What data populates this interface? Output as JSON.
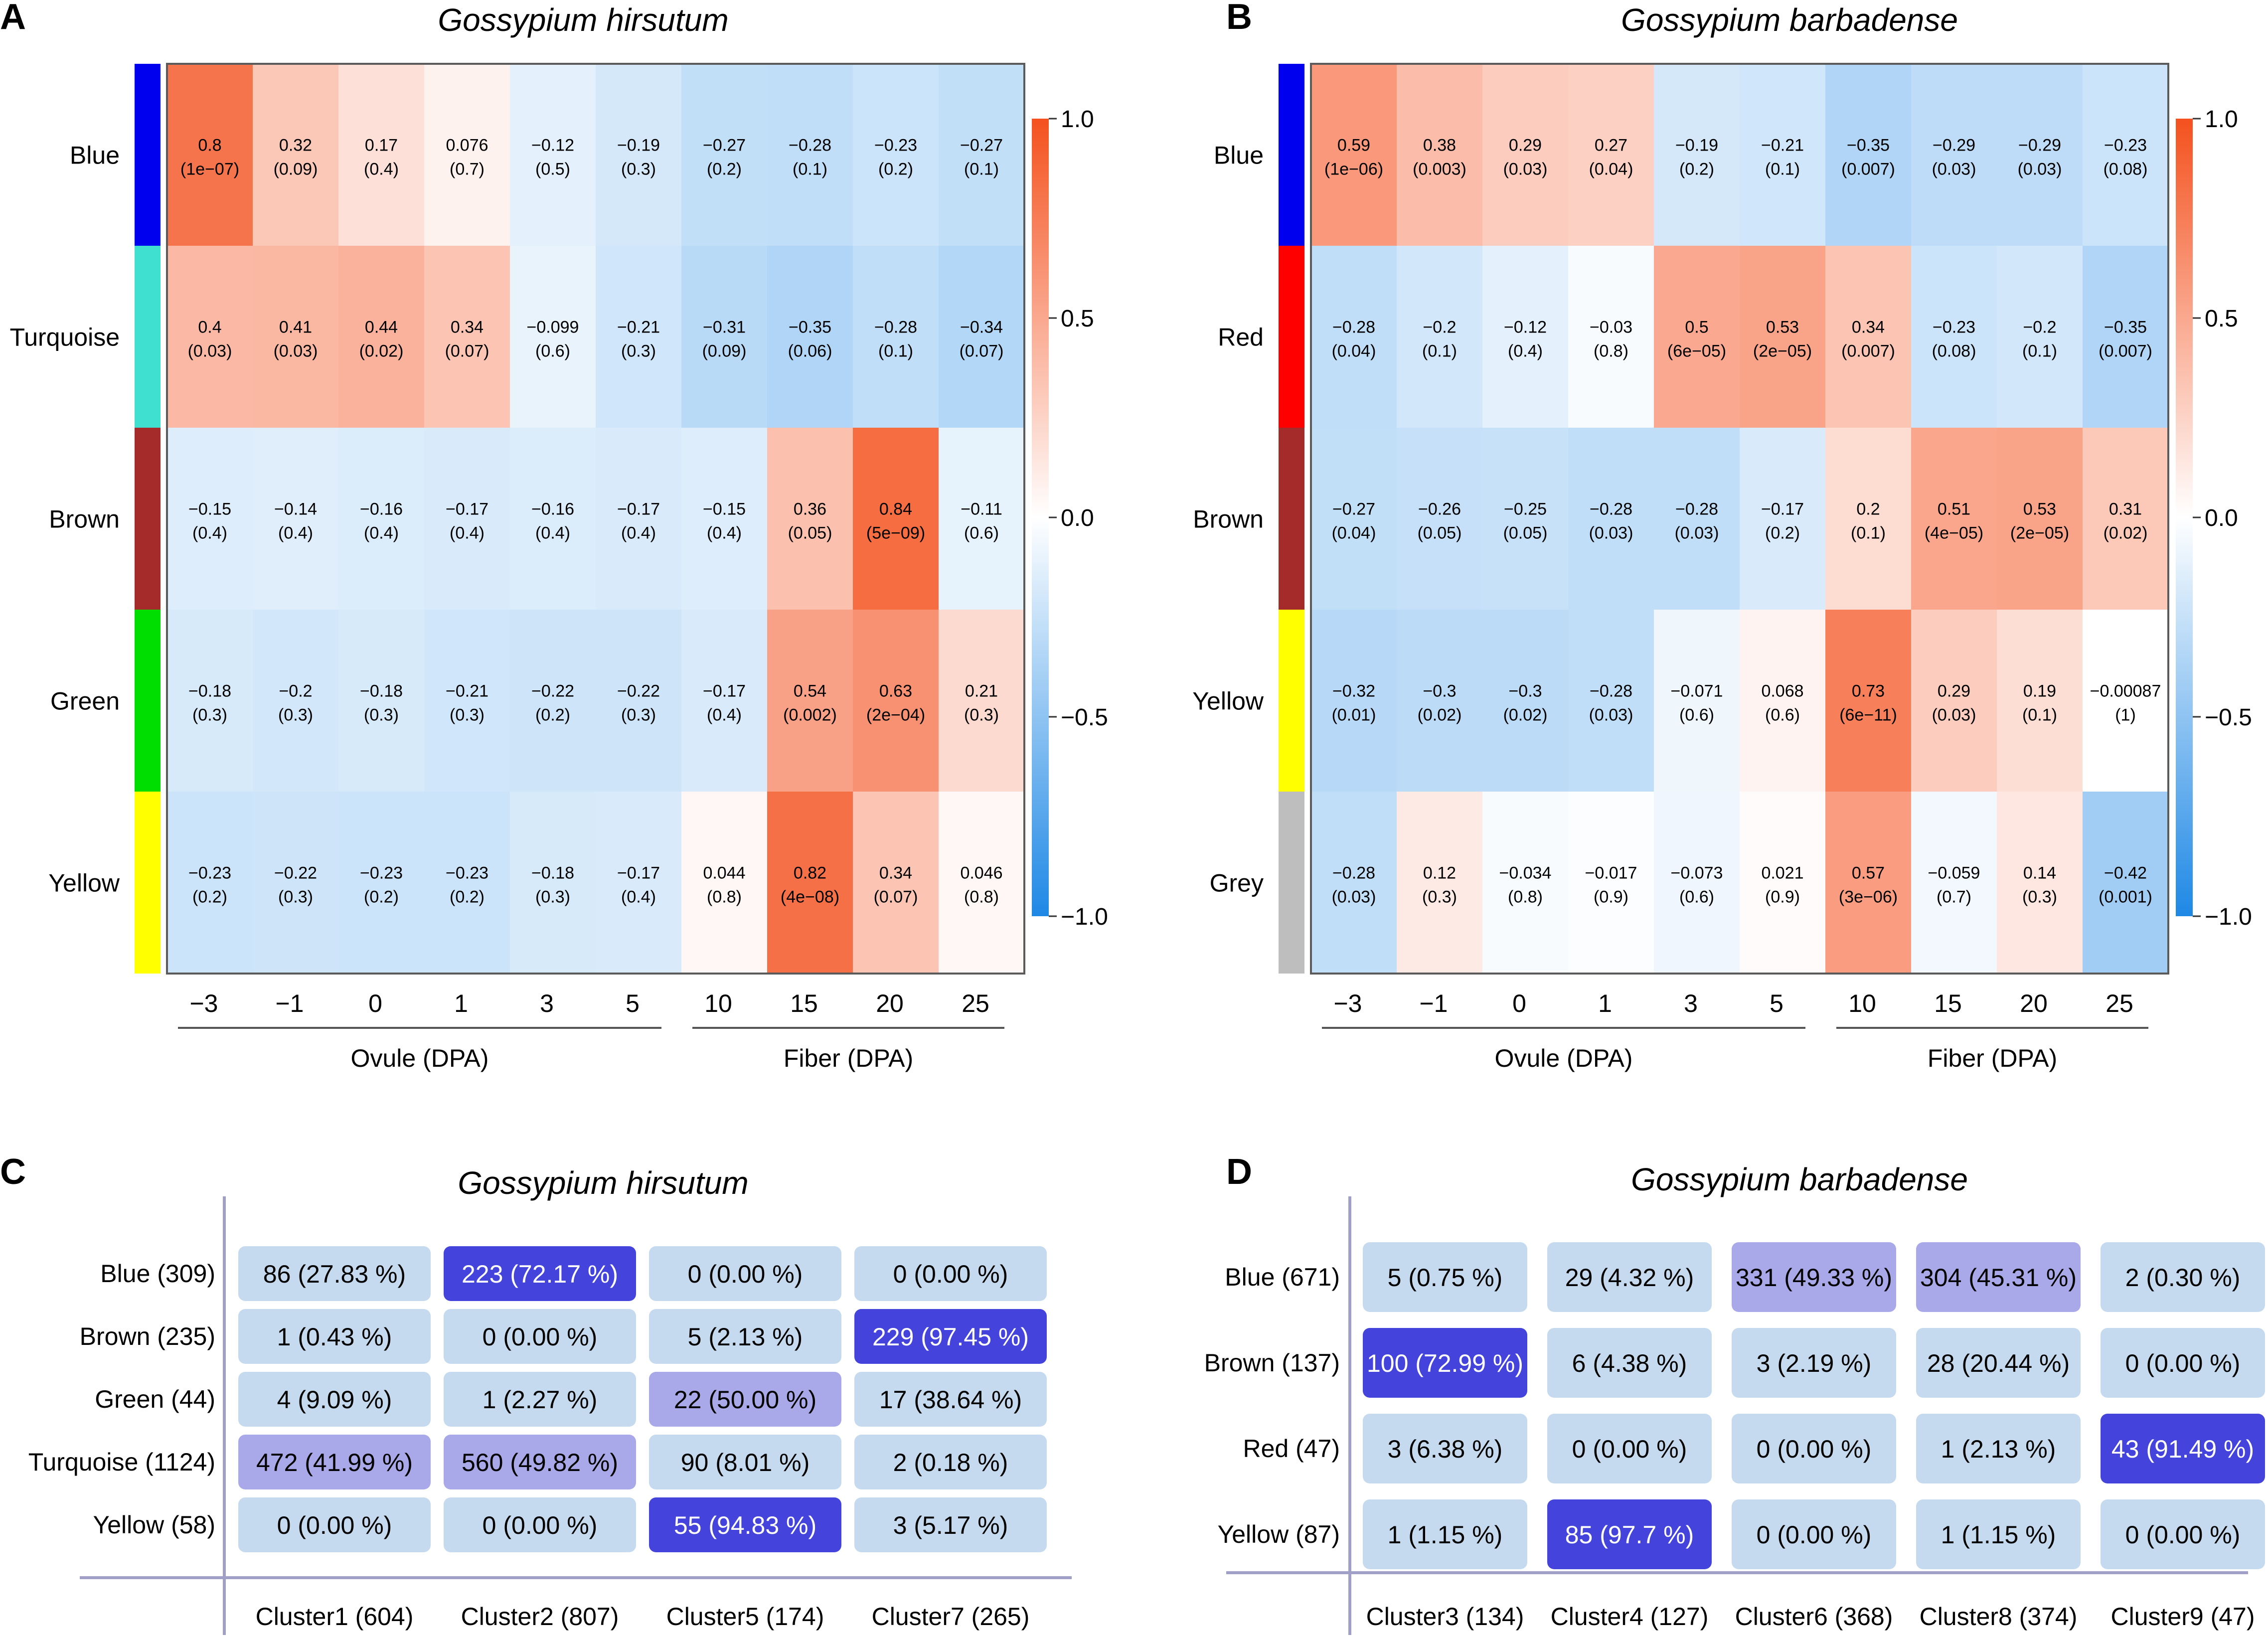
{
  "panel_labels": [
    "A",
    "B",
    "C",
    "D"
  ],
  "colors": {
    "neg": "#1e88e5",
    "mid": "#ffffff",
    "pos": "#f4511e",
    "frame": "#5b5b5b",
    "box_light": "#c6daef",
    "box_mid": "#a9a8e8",
    "box_strong": "#4444dd"
  },
  "chart_data": [
    {
      "type": "heatmap",
      "panel": "A",
      "title": "Gossypium hirsutum",
      "x": [
        "−3",
        "−1",
        "0",
        "1",
        "3",
        "5",
        "10",
        "15",
        "20",
        "25"
      ],
      "groups": [
        {
          "label": "Ovule  (DPA)",
          "from": 0,
          "to": 5
        },
        {
          "label": "Fiber  (DPA)",
          "from": 6,
          "to": 9
        }
      ],
      "rows": [
        {
          "name": "Blue",
          "color": "#0000ee"
        },
        {
          "name": "Turquoise",
          "color": "#40e0d0"
        },
        {
          "name": "Brown",
          "color": "#a52a2a"
        },
        {
          "name": "Green",
          "color": "#00dd00"
        },
        {
          "name": "Yellow",
          "color": "#ffff00"
        }
      ],
      "values": [
        [
          0.8,
          0.32,
          0.17,
          0.076,
          -0.12,
          -0.19,
          -0.27,
          -0.28,
          -0.23,
          -0.27
        ],
        [
          0.4,
          0.41,
          0.44,
          0.34,
          -0.099,
          -0.21,
          -0.31,
          -0.35,
          -0.28,
          -0.34
        ],
        [
          -0.15,
          -0.14,
          -0.16,
          -0.17,
          -0.16,
          -0.17,
          -0.15,
          0.36,
          0.84,
          -0.11
        ],
        [
          -0.18,
          -0.2,
          -0.18,
          -0.21,
          -0.22,
          -0.22,
          -0.17,
          0.54,
          0.63,
          0.21
        ],
        [
          -0.23,
          -0.22,
          -0.23,
          -0.23,
          -0.18,
          -0.17,
          0.044,
          0.82,
          0.34,
          0.046
        ]
      ],
      "labels": [
        [
          "0.8",
          "0.32",
          "0.17",
          "0.076",
          "−0.12",
          "−0.19",
          "−0.27",
          "−0.28",
          "−0.23",
          "−0.27"
        ],
        [
          "0.4",
          "0.41",
          "0.44",
          "0.34",
          "−0.099",
          "−0.21",
          "−0.31",
          "−0.35",
          "−0.28",
          "−0.34"
        ],
        [
          "−0.15",
          "−0.14",
          "−0.16",
          "−0.17",
          "−0.16",
          "−0.17",
          "−0.15",
          "0.36",
          "0.84",
          "−0.11"
        ],
        [
          "−0.18",
          "−0.2",
          "−0.18",
          "−0.21",
          "−0.22",
          "−0.22",
          "−0.17",
          "0.54",
          "0.63",
          "0.21"
        ],
        [
          "−0.23",
          "−0.22",
          "−0.23",
          "−0.23",
          "−0.18",
          "−0.17",
          "0.044",
          "0.82",
          "0.34",
          "0.046"
        ]
      ],
      "pvalues": [
        [
          "(1e−07)",
          "(0.09)",
          "(0.4)",
          "(0.7)",
          "(0.5)",
          "(0.3)",
          "(0.2)",
          "(0.1)",
          "(0.2)",
          "(0.1)"
        ],
        [
          "(0.03)",
          "(0.03)",
          "(0.02)",
          "(0.07)",
          "(0.6)",
          "(0.3)",
          "(0.09)",
          "(0.06)",
          "(0.1)",
          "(0.07)"
        ],
        [
          "(0.4)",
          "(0.4)",
          "(0.4)",
          "(0.4)",
          "(0.4)",
          "(0.4)",
          "(0.4)",
          "(0.05)",
          "(5e−09)",
          "(0.6)"
        ],
        [
          "(0.3)",
          "(0.3)",
          "(0.3)",
          "(0.3)",
          "(0.2)",
          "(0.3)",
          "(0.4)",
          "(0.002)",
          "(2e−04)",
          "(0.3)"
        ],
        [
          "(0.2)",
          "(0.3)",
          "(0.2)",
          "(0.2)",
          "(0.3)",
          "(0.4)",
          "(0.8)",
          "(4e−08)",
          "(0.07)",
          "(0.8)"
        ]
      ],
      "colorbar": {
        "range": [
          -1,
          1
        ],
        "ticks": [
          "1.0",
          "0.5",
          "0.0",
          "−0.5",
          "−1.0"
        ]
      }
    },
    {
      "type": "heatmap",
      "panel": "B",
      "title": "Gossypium barbadense",
      "x": [
        "−3",
        "−1",
        "0",
        "1",
        "3",
        "5",
        "10",
        "15",
        "20",
        "25"
      ],
      "groups": [
        {
          "label": "Ovule  (DPA)",
          "from": 0,
          "to": 5
        },
        {
          "label": "Fiber  (DPA)",
          "from": 6,
          "to": 9
        }
      ],
      "rows": [
        {
          "name": "Blue",
          "color": "#0000ee"
        },
        {
          "name": "Red",
          "color": "#ff0000"
        },
        {
          "name": "Brown",
          "color": "#a52a2a"
        },
        {
          "name": "Yellow",
          "color": "#ffff00"
        },
        {
          "name": "Grey",
          "color": "#bebebe"
        }
      ],
      "values": [
        [
          0.59,
          0.38,
          0.29,
          0.27,
          -0.19,
          -0.21,
          -0.35,
          -0.29,
          -0.29,
          -0.23
        ],
        [
          -0.28,
          -0.2,
          -0.12,
          -0.03,
          0.5,
          0.53,
          0.34,
          -0.23,
          -0.2,
          -0.35
        ],
        [
          -0.27,
          -0.26,
          -0.25,
          -0.28,
          -0.28,
          -0.17,
          0.2,
          0.51,
          0.53,
          0.31
        ],
        [
          -0.32,
          -0.3,
          -0.3,
          -0.28,
          -0.071,
          0.068,
          0.73,
          0.29,
          0.19,
          -0.00087
        ],
        [
          -0.28,
          0.12,
          -0.034,
          -0.017,
          -0.073,
          0.021,
          0.57,
          -0.059,
          0.14,
          -0.42
        ]
      ],
      "labels": [
        [
          "0.59",
          "0.38",
          "0.29",
          "0.27",
          "−0.19",
          "−0.21",
          "−0.35",
          "−0.29",
          "−0.29",
          "−0.23"
        ],
        [
          "−0.28",
          "−0.2",
          "−0.12",
          "−0.03",
          "0.5",
          "0.53",
          "0.34",
          "−0.23",
          "−0.2",
          "−0.35"
        ],
        [
          "−0.27",
          "−0.26",
          "−0.25",
          "−0.28",
          "−0.28",
          "−0.17",
          "0.2",
          "0.51",
          "0.53",
          "0.31"
        ],
        [
          "−0.32",
          "−0.3",
          "−0.3",
          "−0.28",
          "−0.071",
          "0.068",
          "0.73",
          "0.29",
          "0.19",
          "−0.00087"
        ],
        [
          "−0.28",
          "0.12",
          "−0.034",
          "−0.017",
          "−0.073",
          "0.021",
          "0.57",
          "−0.059",
          "0.14",
          "−0.42"
        ]
      ],
      "pvalues": [
        [
          "(1e−06)",
          "(0.003)",
          "(0.03)",
          "(0.04)",
          "(0.2)",
          "(0.1)",
          "(0.007)",
          "(0.03)",
          "(0.03)",
          "(0.08)"
        ],
        [
          "(0.04)",
          "(0.1)",
          "(0.4)",
          "(0.8)",
          "(6e−05)",
          "(2e−05)",
          "(0.007)",
          "(0.08)",
          "(0.1)",
          "(0.007)"
        ],
        [
          "(0.04)",
          "(0.05)",
          "(0.05)",
          "(0.03)",
          "(0.03)",
          "(0.2)",
          "(0.1)",
          "(4e−05)",
          "(2e−05)",
          "(0.02)"
        ],
        [
          "(0.01)",
          "(0.02)",
          "(0.02)",
          "(0.03)",
          "(0.6)",
          "(0.6)",
          "(6e−11)",
          "(0.03)",
          "(0.1)",
          "(1)"
        ],
        [
          "(0.03)",
          "(0.3)",
          "(0.8)",
          "(0.9)",
          "(0.6)",
          "(0.9)",
          "(3e−06)",
          "(0.7)",
          "(0.3)",
          "(0.001)"
        ]
      ],
      "colorbar": {
        "range": [
          -1,
          1
        ],
        "ticks": [
          "1.0",
          "0.5",
          "0.0",
          "−0.5",
          "−1.0"
        ]
      }
    },
    {
      "type": "table",
      "panel": "C",
      "title": "Gossypium hirsutum",
      "row_labels": [
        "Blue (309)",
        "Brown (235)",
        "Green (44)",
        "Turquoise (1124)",
        "Yellow (58)"
      ],
      "col_labels": [
        "Cluster1 (604)",
        "Cluster2 (807)",
        "Cluster5 (174)",
        "Cluster7 (265)"
      ],
      "cells": [
        [
          "86 (27.83 %)",
          "223 (72.17 %)",
          "0 (0.00 %)",
          "0 (0.00 %)"
        ],
        [
          "1 (0.43 %)",
          "0 (0.00 %)",
          "5 (2.13 %)",
          "229 (97.45 %)"
        ],
        [
          "4 (9.09 %)",
          "1 (2.27 %)",
          "22 (50.00 %)",
          "17 (38.64 %)"
        ],
        [
          "472 (41.99 %)",
          "560 (49.82 %)",
          "90 (8.01 %)",
          "2 (0.18 %)"
        ],
        [
          "0 (0.00 %)",
          "0 (0.00 %)",
          "55 (94.83 %)",
          "3 (5.17 %)"
        ]
      ],
      "percent": [
        [
          27.83,
          72.17,
          0.0,
          0.0
        ],
        [
          0.43,
          0.0,
          2.13,
          97.45
        ],
        [
          9.09,
          2.27,
          50.0,
          38.64
        ],
        [
          41.99,
          49.82,
          8.01,
          0.18
        ],
        [
          0.0,
          0.0,
          94.83,
          5.17
        ]
      ]
    },
    {
      "type": "table",
      "panel": "D",
      "title": "Gossypium barbadense",
      "row_labels": [
        "Blue (671)",
        "Brown (137)",
        "Red (47)",
        "Yellow (87)"
      ],
      "col_labels": [
        "Cluster3 (134)",
        "Cluster4 (127)",
        "Cluster6 (368)",
        "Cluster8 (374)",
        "Cluster9 (47)"
      ],
      "cells": [
        [
          "5 (0.75 %)",
          "29 (4.32 %)",
          "331 (49.33 %)",
          "304 (45.31 %)",
          "2 (0.30 %)"
        ],
        [
          "100 (72.99 %)",
          "6 (4.38 %)",
          "3 (2.19 %)",
          "28 (20.44 %)",
          "0 (0.00 %)"
        ],
        [
          "3 (6.38 %)",
          "0 (0.00 %)",
          "0 (0.00 %)",
          "1 (2.13 %)",
          "43 (91.49 %)"
        ],
        [
          "1 (1.15 %)",
          "85 (97.7 %)",
          "0 (0.00 %)",
          "1 (1.15 %)",
          "0 (0.00 %)"
        ]
      ],
      "percent": [
        [
          0.75,
          4.32,
          49.33,
          45.31,
          0.3
        ],
        [
          72.99,
          4.38,
          2.19,
          20.44,
          0.0
        ],
        [
          6.38,
          0.0,
          0.0,
          2.13,
          91.49
        ],
        [
          1.15,
          97.7,
          0.0,
          1.15,
          0.0
        ]
      ]
    }
  ]
}
